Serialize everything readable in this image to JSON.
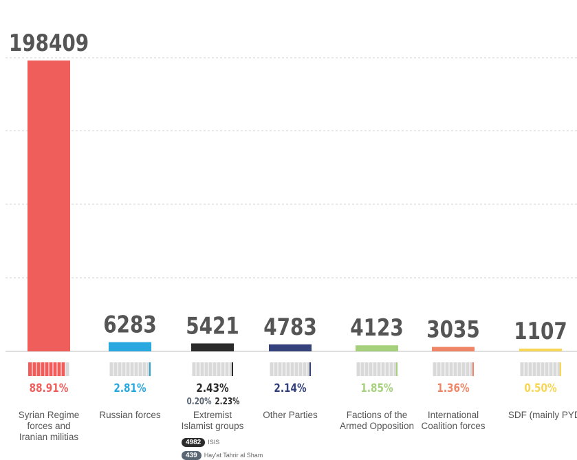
{
  "chart_data": {
    "type": "bar",
    "categories": [
      "Syrian Regime forces and Iranian militias",
      "Russian forces",
      "Extremist Islamist groups",
      "Other Parties",
      "Factions of the Armed Opposition",
      "International Coalition forces",
      "SDF (mainly PYD)"
    ],
    "category_lines": [
      [
        "Syrian Regime",
        "forces and",
        "Iranian militias"
      ],
      [
        "Russian forces"
      ],
      [
        "Extremist",
        "Islamist groups"
      ],
      [
        "Other Parties"
      ],
      [
        "Factions of the",
        "Armed Opposition"
      ],
      [
        "International",
        "Coalition forces"
      ],
      [
        "SDF (mainly PYD)"
      ]
    ],
    "values": [
      198409,
      6283,
      5421,
      4783,
      4123,
      3035,
      1107
    ],
    "value_labels": [
      "198409",
      "6283",
      "5421",
      "4783",
      "4123",
      "3035",
      "1107"
    ],
    "percentages": [
      "88.91%",
      "2.81%",
      "2.43%",
      "2.14%",
      "1.85%",
      "1.36%",
      "0.50%"
    ],
    "percent_values": [
      88.91,
      2.81,
      2.43,
      2.14,
      1.85,
      1.36,
      0.5
    ],
    "colors": [
      "#f05e5c",
      "#29a8e0",
      "#2b2b2b",
      "#34417a",
      "#a6d07c",
      "#ef8566",
      "#f6d653"
    ],
    "percent_colors": [
      "#f05e5c",
      "#29a8e0",
      "#2b2b2b",
      "#34417a",
      "#a6d07c",
      "#ef8566",
      "#f6d653"
    ],
    "ylim": [
      0,
      198409
    ],
    "grid": true,
    "extremist_breakdown": {
      "percentages": [
        "0.20%",
        "2.23%"
      ],
      "groups": [
        {
          "count": "4982",
          "name": "ISIS",
          "color": "#2b2b2b"
        },
        {
          "count": "439",
          "name": "Hay'at Tahrir al Sham",
          "color": "#5a6673"
        }
      ]
    }
  }
}
